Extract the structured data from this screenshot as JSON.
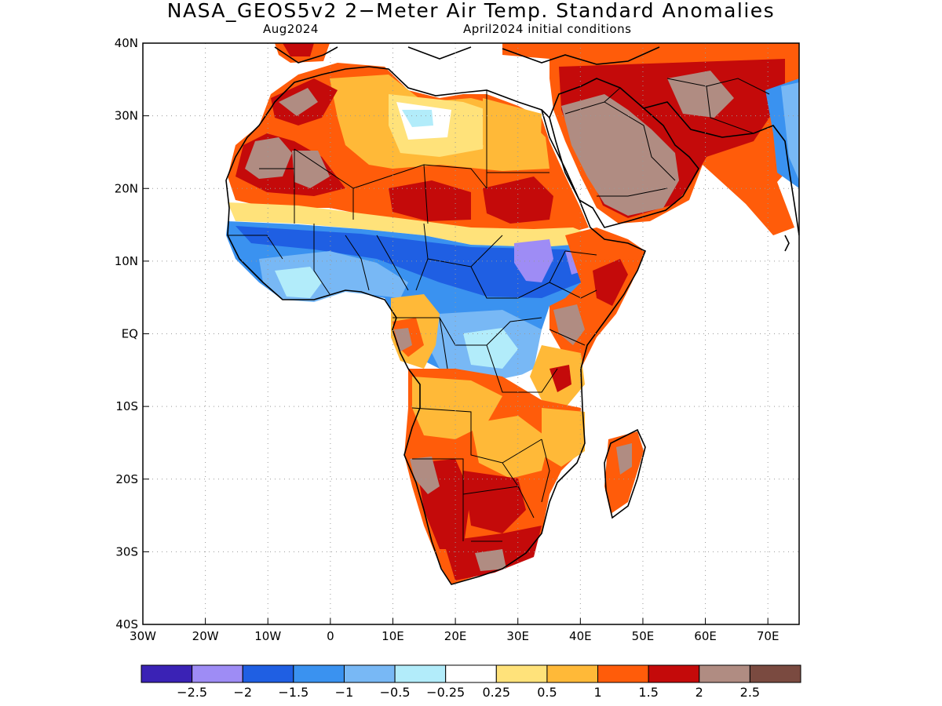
{
  "title": "NASA_GEOS5v2 2−Meter Air Temp. Standard Anomalies",
  "valid_month": "Aug2024",
  "initial_conditions": "April2024 initial conditions",
  "lat_labels": [
    "40N",
    "30N",
    "20N",
    "10N",
    "EQ",
    "10S",
    "20S",
    "30S",
    "40S"
  ],
  "lon_labels": [
    "30W",
    "20W",
    "10W",
    "0",
    "10E",
    "20E",
    "30E",
    "40E",
    "50E",
    "60E",
    "70E"
  ],
  "colorbar": {
    "colors": [
      "#3a22b5",
      "#9e8cf5",
      "#1f5fe3",
      "#3a92f0",
      "#78b8f5",
      "#b2ecfa",
      "#ffffff",
      "#ffe27a",
      "#ffb938",
      "#ff5c0a",
      "#c40a0a",
      "#b08c82",
      "#7a4a40"
    ],
    "labels": [
      "−2.5",
      "−2",
      "−1.5",
      "−1",
      "−0.5",
      "−0.25",
      "0.25",
      "0.5",
      "1",
      "1.5",
      "2",
      "2.5"
    ]
  }
}
